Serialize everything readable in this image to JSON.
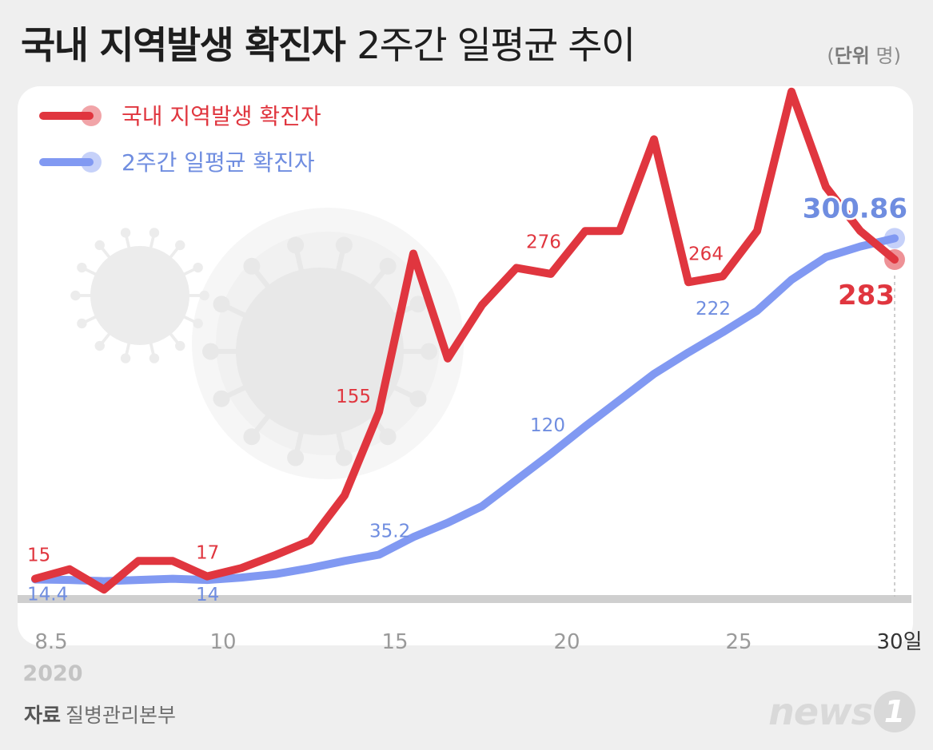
{
  "title": {
    "bold": "국내 지역발생 확진자",
    "light": "2주간 일평균 추이"
  },
  "unit": {
    "label": "단위",
    "value": "명"
  },
  "source": {
    "label": "자료",
    "value": "질병관리본부"
  },
  "logo": {
    "text": "news",
    "badge": "1"
  },
  "colors": {
    "local": "#e0363f",
    "avg": "#8199f2",
    "avg_text": "#6f8de0",
    "baseline": "#cfcfcf"
  },
  "chart_data": {
    "type": "line",
    "x": [
      5,
      6,
      7,
      8,
      9,
      10,
      11,
      12,
      13,
      14,
      15,
      16,
      17,
      18,
      19,
      20,
      21,
      22,
      23,
      24,
      25,
      26,
      27,
      28,
      29,
      30
    ],
    "x_ticks": [
      {
        "day": 5,
        "label": "8.5"
      },
      {
        "day": 10,
        "label": "10"
      },
      {
        "day": 15,
        "label": "15"
      },
      {
        "day": 20,
        "label": "20"
      },
      {
        "day": 25,
        "label": "25"
      },
      {
        "day": 30,
        "label": "30일"
      }
    ],
    "year_label": "2020",
    "ylim": [
      0,
      340
    ],
    "series": [
      {
        "name": "국내 지역발생 확진자",
        "values": [
          15,
          23,
          6,
          30,
          30,
          17,
          24,
          35,
          47,
          85,
          155,
          288,
          200,
          245,
          276,
          271,
          307,
          307,
          384,
          264,
          269,
          307,
          424,
          344,
          307,
          283
        ],
        "labels": [
          {
            "day": 5,
            "text": "15"
          },
          {
            "day": 10,
            "text": "17"
          },
          {
            "day": 15,
            "text": "155"
          },
          {
            "day": 19,
            "text": "276"
          },
          {
            "day": 24,
            "text": "264"
          },
          {
            "day": 30,
            "text": "283"
          }
        ]
      },
      {
        "name": "2주간 일평균 확진자",
        "values": [
          14.4,
          14,
          13,
          14,
          15,
          14,
          16,
          19,
          24,
          30,
          35.2,
          50,
          62,
          76,
          98,
          120,
          143,
          165,
          187,
          205,
          222,
          240,
          266,
          285,
          294,
          300.86
        ],
        "labels": [
          {
            "day": 5,
            "text": "14.4"
          },
          {
            "day": 10,
            "text": "14"
          },
          {
            "day": 15,
            "text": "35.2"
          },
          {
            "day": 20,
            "text": "120"
          },
          {
            "day": 25,
            "text": "222"
          },
          {
            "day": 30,
            "text": "300.86"
          }
        ]
      }
    ]
  }
}
